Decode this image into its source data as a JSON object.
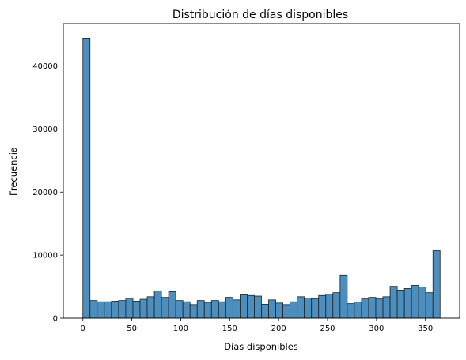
{
  "chart_data": {
    "type": "bar",
    "subtype": "histogram",
    "title": "Distribución de días disponibles",
    "xlabel": "Días disponibles",
    "ylabel": "Frecuencia",
    "xlim": [
      -20,
      385
    ],
    "ylim": [
      0,
      46700
    ],
    "x_ticks": [
      0,
      50,
      100,
      150,
      200,
      250,
      300,
      350
    ],
    "y_ticks": [
      0,
      10000,
      20000,
      30000,
      40000
    ],
    "grid": false,
    "bar_color": "#4c8ebd",
    "bar_edge_color": "#1f1f1f",
    "bin_width": 7.3,
    "bin_start": 0,
    "values": [
      44400,
      2800,
      2600,
      2600,
      2700,
      2800,
      3150,
      2700,
      3000,
      3400,
      4300,
      3300,
      4200,
      2800,
      2600,
      2150,
      2800,
      2500,
      2800,
      2600,
      3300,
      2900,
      3700,
      3600,
      3500,
      2200,
      2900,
      2400,
      2150,
      2600,
      3400,
      3200,
      3100,
      3600,
      3800,
      4050,
      6850,
      2300,
      2550,
      3050,
      3300,
      3050,
      3400,
      5050,
      4450,
      4700,
      5200,
      4950,
      4050,
      10700
    ]
  }
}
